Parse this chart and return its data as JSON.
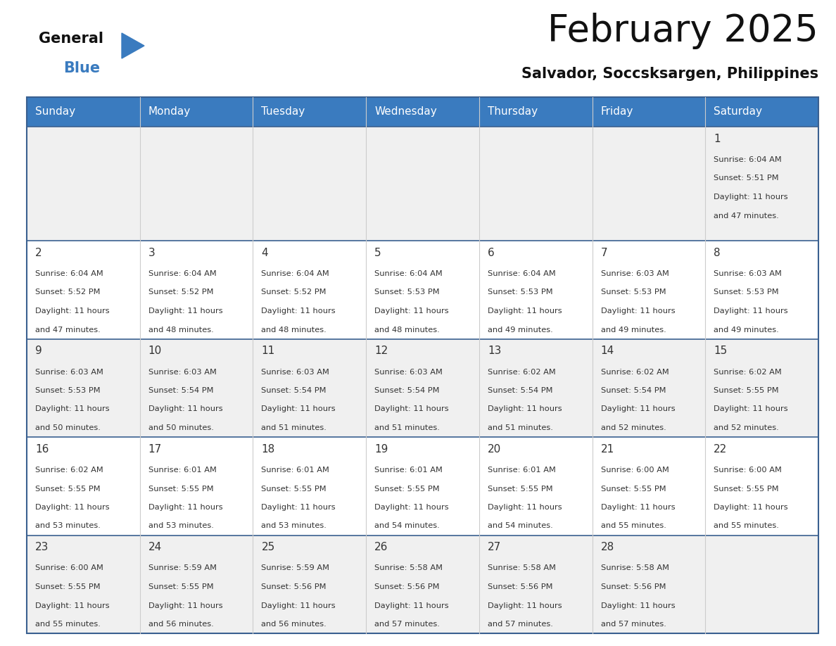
{
  "title": "February 2025",
  "subtitle": "Salvador, Soccsksargen, Philippines",
  "header_color": "#3a7bbf",
  "header_text_color": "#ffffff",
  "day_number_color": "#333333",
  "text_color": "#333333",
  "row_separator_color": "#3a6090",
  "vertical_line_color": "#cccccc",
  "cell_bg_even": "#f0f0f0",
  "cell_bg_odd": "#ffffff",
  "days_of_week": [
    "Sunday",
    "Monday",
    "Tuesday",
    "Wednesday",
    "Thursday",
    "Friday",
    "Saturday"
  ],
  "weeks": [
    [
      {
        "day": null,
        "sunrise": null,
        "sunset": null,
        "daylight": null
      },
      {
        "day": null,
        "sunrise": null,
        "sunset": null,
        "daylight": null
      },
      {
        "day": null,
        "sunrise": null,
        "sunset": null,
        "daylight": null
      },
      {
        "day": null,
        "sunrise": null,
        "sunset": null,
        "daylight": null
      },
      {
        "day": null,
        "sunrise": null,
        "sunset": null,
        "daylight": null
      },
      {
        "day": null,
        "sunrise": null,
        "sunset": null,
        "daylight": null
      },
      {
        "day": 1,
        "sunrise": "6:04 AM",
        "sunset": "5:51 PM",
        "daylight": "11 hours and 47 minutes."
      }
    ],
    [
      {
        "day": 2,
        "sunrise": "6:04 AM",
        "sunset": "5:52 PM",
        "daylight": "11 hours and 47 minutes."
      },
      {
        "day": 3,
        "sunrise": "6:04 AM",
        "sunset": "5:52 PM",
        "daylight": "11 hours and 48 minutes."
      },
      {
        "day": 4,
        "sunrise": "6:04 AM",
        "sunset": "5:52 PM",
        "daylight": "11 hours and 48 minutes."
      },
      {
        "day": 5,
        "sunrise": "6:04 AM",
        "sunset": "5:53 PM",
        "daylight": "11 hours and 48 minutes."
      },
      {
        "day": 6,
        "sunrise": "6:04 AM",
        "sunset": "5:53 PM",
        "daylight": "11 hours and 49 minutes."
      },
      {
        "day": 7,
        "sunrise": "6:03 AM",
        "sunset": "5:53 PM",
        "daylight": "11 hours and 49 minutes."
      },
      {
        "day": 8,
        "sunrise": "6:03 AM",
        "sunset": "5:53 PM",
        "daylight": "11 hours and 49 minutes."
      }
    ],
    [
      {
        "day": 9,
        "sunrise": "6:03 AM",
        "sunset": "5:53 PM",
        "daylight": "11 hours and 50 minutes."
      },
      {
        "day": 10,
        "sunrise": "6:03 AM",
        "sunset": "5:54 PM",
        "daylight": "11 hours and 50 minutes."
      },
      {
        "day": 11,
        "sunrise": "6:03 AM",
        "sunset": "5:54 PM",
        "daylight": "11 hours and 51 minutes."
      },
      {
        "day": 12,
        "sunrise": "6:03 AM",
        "sunset": "5:54 PM",
        "daylight": "11 hours and 51 minutes."
      },
      {
        "day": 13,
        "sunrise": "6:02 AM",
        "sunset": "5:54 PM",
        "daylight": "11 hours and 51 minutes."
      },
      {
        "day": 14,
        "sunrise": "6:02 AM",
        "sunset": "5:54 PM",
        "daylight": "11 hours and 52 minutes."
      },
      {
        "day": 15,
        "sunrise": "6:02 AM",
        "sunset": "5:55 PM",
        "daylight": "11 hours and 52 minutes."
      }
    ],
    [
      {
        "day": 16,
        "sunrise": "6:02 AM",
        "sunset": "5:55 PM",
        "daylight": "11 hours and 53 minutes."
      },
      {
        "day": 17,
        "sunrise": "6:01 AM",
        "sunset": "5:55 PM",
        "daylight": "11 hours and 53 minutes."
      },
      {
        "day": 18,
        "sunrise": "6:01 AM",
        "sunset": "5:55 PM",
        "daylight": "11 hours and 53 minutes."
      },
      {
        "day": 19,
        "sunrise": "6:01 AM",
        "sunset": "5:55 PM",
        "daylight": "11 hours and 54 minutes."
      },
      {
        "day": 20,
        "sunrise": "6:01 AM",
        "sunset": "5:55 PM",
        "daylight": "11 hours and 54 minutes."
      },
      {
        "day": 21,
        "sunrise": "6:00 AM",
        "sunset": "5:55 PM",
        "daylight": "11 hours and 55 minutes."
      },
      {
        "day": 22,
        "sunrise": "6:00 AM",
        "sunset": "5:55 PM",
        "daylight": "11 hours and 55 minutes."
      }
    ],
    [
      {
        "day": 23,
        "sunrise": "6:00 AM",
        "sunset": "5:55 PM",
        "daylight": "11 hours and 55 minutes."
      },
      {
        "day": 24,
        "sunrise": "5:59 AM",
        "sunset": "5:55 PM",
        "daylight": "11 hours and 56 minutes."
      },
      {
        "day": 25,
        "sunrise": "5:59 AM",
        "sunset": "5:56 PM",
        "daylight": "11 hours and 56 minutes."
      },
      {
        "day": 26,
        "sunrise": "5:58 AM",
        "sunset": "5:56 PM",
        "daylight": "11 hours and 57 minutes."
      },
      {
        "day": 27,
        "sunrise": "5:58 AM",
        "sunset": "5:56 PM",
        "daylight": "11 hours and 57 minutes."
      },
      {
        "day": 28,
        "sunrise": "5:58 AM",
        "sunset": "5:56 PM",
        "daylight": "11 hours and 57 minutes."
      },
      {
        "day": null,
        "sunrise": null,
        "sunset": null,
        "daylight": null
      }
    ]
  ]
}
